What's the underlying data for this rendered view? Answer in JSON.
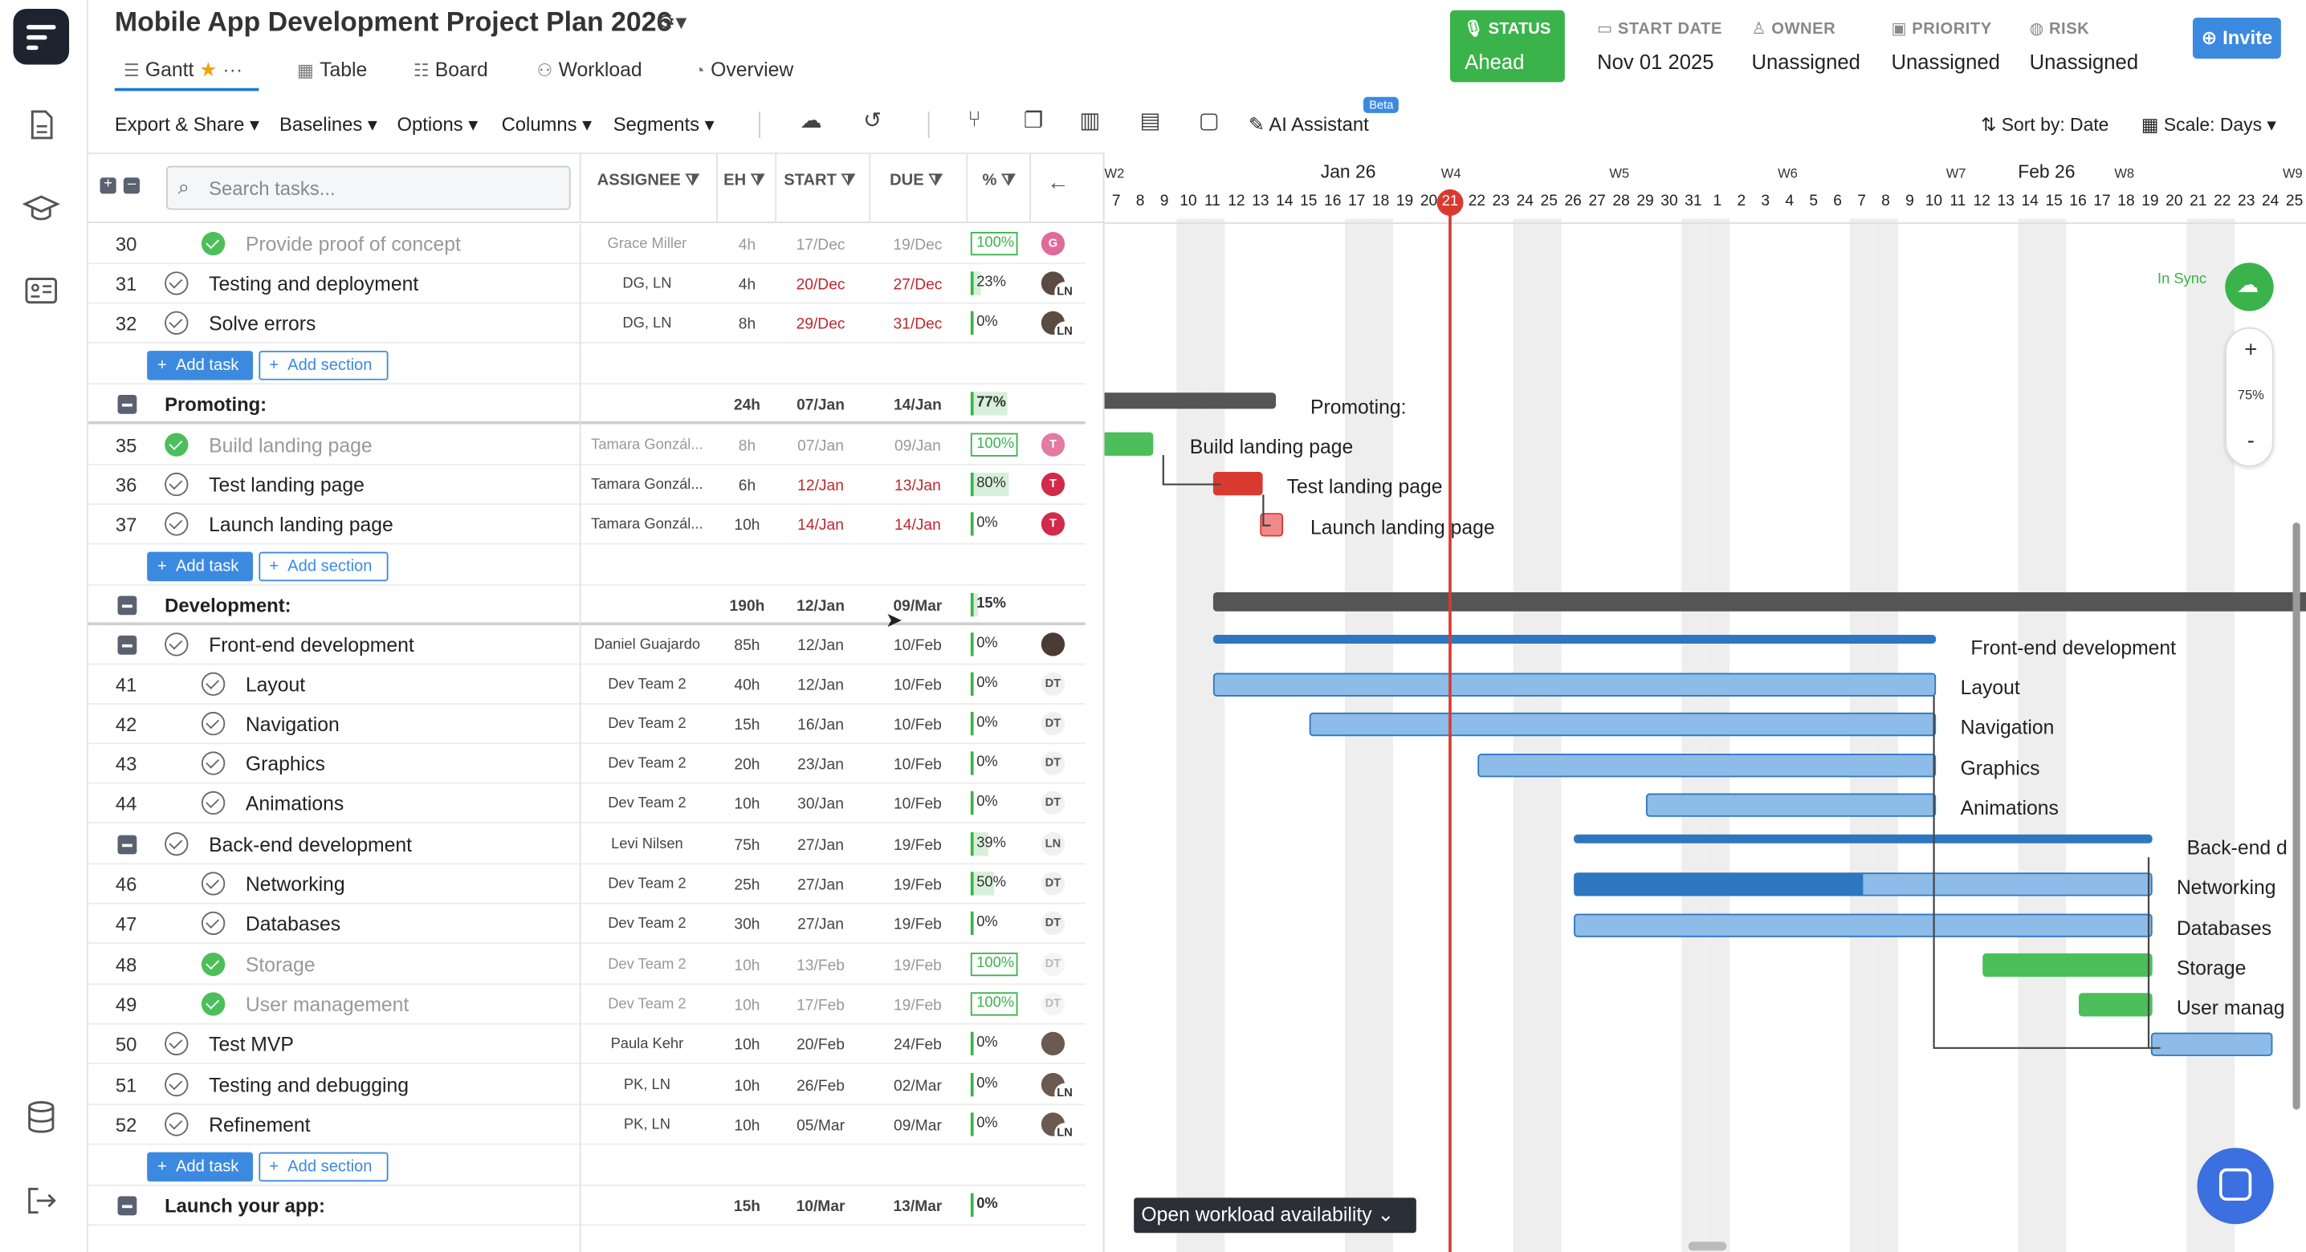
{
  "project": {
    "title": "Mobile App Development Project Plan 2026"
  },
  "tabs": [
    {
      "label": "Gantt"
    },
    {
      "label": "Table"
    },
    {
      "label": "Board"
    },
    {
      "label": "Workload"
    },
    {
      "label": "Overview"
    }
  ],
  "status": {
    "label": "STATUS",
    "value": "Ahead"
  },
  "meta": [
    {
      "label": "START DATE",
      "value": "Nov 01 2025"
    },
    {
      "label": "OWNER",
      "value": "Unassigned"
    },
    {
      "label": "PRIORITY",
      "value": "Unassigned"
    },
    {
      "label": "RISK",
      "value": "Unassigned"
    }
  ],
  "invite_label": "Invite",
  "toolbar": {
    "export": "Export & Share",
    "baselines": "Baselines",
    "options": "Options",
    "columns": "Columns",
    "segments": "Segments",
    "ai": "AI Assistant",
    "beta": "Beta",
    "sort": "Sort by: Date",
    "scale": "Scale: Days"
  },
  "search": {
    "placeholder": "Search tasks..."
  },
  "columns": {
    "assignee": "ASSIGNEE",
    "eh": "EH",
    "start": "START",
    "due": "DUE",
    "pct": "%"
  },
  "add_task": "Add task",
  "add_section": "Add section",
  "rows": [
    {
      "num": "30",
      "name": "Provide proof of concept",
      "assignee": "Grace Miller",
      "eh": "4h",
      "start": "17/Dec",
      "due": "19/Dec",
      "pct": "100%"
    },
    {
      "num": "31",
      "name": "Testing and deployment",
      "assignee": "DG, LN",
      "eh": "4h",
      "start": "20/Dec",
      "due": "27/Dec",
      "pct": "23%"
    },
    {
      "num": "32",
      "name": "Solve errors",
      "assignee": "DG, LN",
      "eh": "8h",
      "start": "29/Dec",
      "due": "31/Dec",
      "pct": "0%"
    },
    {
      "name": "Promoting:",
      "eh": "24h",
      "start": "07/Jan",
      "due": "14/Jan",
      "pct": "77%"
    },
    {
      "num": "35",
      "name": "Build landing page",
      "assignee": "Tamara Gonzál...",
      "eh": "8h",
      "start": "07/Jan",
      "due": "09/Jan",
      "pct": "100%"
    },
    {
      "num": "36",
      "name": "Test landing page",
      "assignee": "Tamara Gonzál...",
      "eh": "6h",
      "start": "12/Jan",
      "due": "13/Jan",
      "pct": "80%"
    },
    {
      "num": "37",
      "name": "Launch landing page",
      "assignee": "Tamara Gonzál...",
      "eh": "10h",
      "start": "14/Jan",
      "due": "14/Jan",
      "pct": "0%"
    },
    {
      "name": "Development:",
      "eh": "190h",
      "start": "12/Jan",
      "due": "09/Mar",
      "pct": "15%"
    },
    {
      "name": "Front-end development",
      "assignee": "Daniel Guajardo",
      "eh": "85h",
      "start": "12/Jan",
      "due": "10/Feb",
      "pct": "0%"
    },
    {
      "num": "41",
      "name": "Layout",
      "assignee": "Dev Team 2",
      "eh": "40h",
      "start": "12/Jan",
      "due": "10/Feb",
      "pct": "0%"
    },
    {
      "num": "42",
      "name": "Navigation",
      "assignee": "Dev Team 2",
      "eh": "15h",
      "start": "16/Jan",
      "due": "10/Feb",
      "pct": "0%"
    },
    {
      "num": "43",
      "name": "Graphics",
      "assignee": "Dev Team 2",
      "eh": "20h",
      "start": "23/Jan",
      "due": "10/Feb",
      "pct": "0%"
    },
    {
      "num": "44",
      "name": "Animations",
      "assignee": "Dev Team 2",
      "eh": "10h",
      "start": "30/Jan",
      "due": "10/Feb",
      "pct": "0%"
    },
    {
      "name": "Back-end development",
      "assignee": "Levi Nilsen",
      "eh": "75h",
      "start": "27/Jan",
      "due": "19/Feb",
      "pct": "39%"
    },
    {
      "num": "46",
      "name": "Networking",
      "assignee": "Dev Team 2",
      "eh": "25h",
      "start": "27/Jan",
      "due": "19/Feb",
      "pct": "50%"
    },
    {
      "num": "47",
      "name": "Databases",
      "assignee": "Dev Team 2",
      "eh": "30h",
      "start": "27/Jan",
      "due": "19/Feb",
      "pct": "0%"
    },
    {
      "num": "48",
      "name": "Storage",
      "assignee": "Dev Team 2",
      "eh": "10h",
      "start": "13/Feb",
      "due": "19/Feb",
      "pct": "100%"
    },
    {
      "num": "49",
      "name": "User management",
      "assignee": "Dev Team 2",
      "eh": "10h",
      "start": "17/Feb",
      "due": "19/Feb",
      "pct": "100%"
    },
    {
      "num": "50",
      "name": "Test MVP",
      "assignee": "Paula Kehr",
      "eh": "10h",
      "start": "20/Feb",
      "due": "24/Feb",
      "pct": "0%"
    },
    {
      "num": "51",
      "name": "Testing and debugging",
      "assignee": "PK, LN",
      "eh": "10h",
      "start": "26/Feb",
      "due": "02/Mar",
      "pct": "0%"
    },
    {
      "num": "52",
      "name": "Refinement",
      "assignee": "PK, LN",
      "eh": "10h",
      "start": "05/Mar",
      "due": "09/Mar",
      "pct": "0%"
    },
    {
      "name": "Launch your app:",
      "eh": "15h",
      "start": "10/Mar",
      "due": "13/Mar",
      "pct": "0%"
    }
  ],
  "avatars": {
    "g": "G",
    "t": "T",
    "dt": "DT",
    "ln": "LN"
  },
  "gantt": {
    "weeks": [
      "W2",
      "W4",
      "W5",
      "W6",
      "W7",
      "W8",
      "W9"
    ],
    "months": [
      "Jan 26",
      "Feb 26"
    ],
    "days": [
      "7",
      "8",
      "9",
      "10",
      "11",
      "12",
      "13",
      "14",
      "15",
      "16",
      "17",
      "18",
      "19",
      "20",
      "21",
      "22",
      "23",
      "24",
      "25",
      "26",
      "27",
      "28",
      "29",
      "30",
      "31",
      "1",
      "2",
      "3",
      "4",
      "5",
      "6",
      "7",
      "8",
      "9",
      "10",
      "11",
      "12",
      "13",
      "14",
      "15",
      "16",
      "17",
      "18",
      "19",
      "20",
      "21",
      "22",
      "23",
      "24",
      "25"
    ],
    "today": "21",
    "labels": {
      "promoting": "Promoting:",
      "build": "Build landing page",
      "test": "Test landing page",
      "launch": "Launch landing page",
      "frontend": "Front-end development",
      "layout": "Layout",
      "navigation": "Navigation",
      "graphics": "Graphics",
      "animations": "Animations",
      "backend": "Back-end d",
      "networking": "Networking",
      "databases": "Databases",
      "storage": "Storage",
      "userman": "User manag"
    },
    "sync": "In Sync",
    "zoom": "75%",
    "zoom_in": "+",
    "zoom_out": "-"
  },
  "workload_btn": "Open workload availability"
}
